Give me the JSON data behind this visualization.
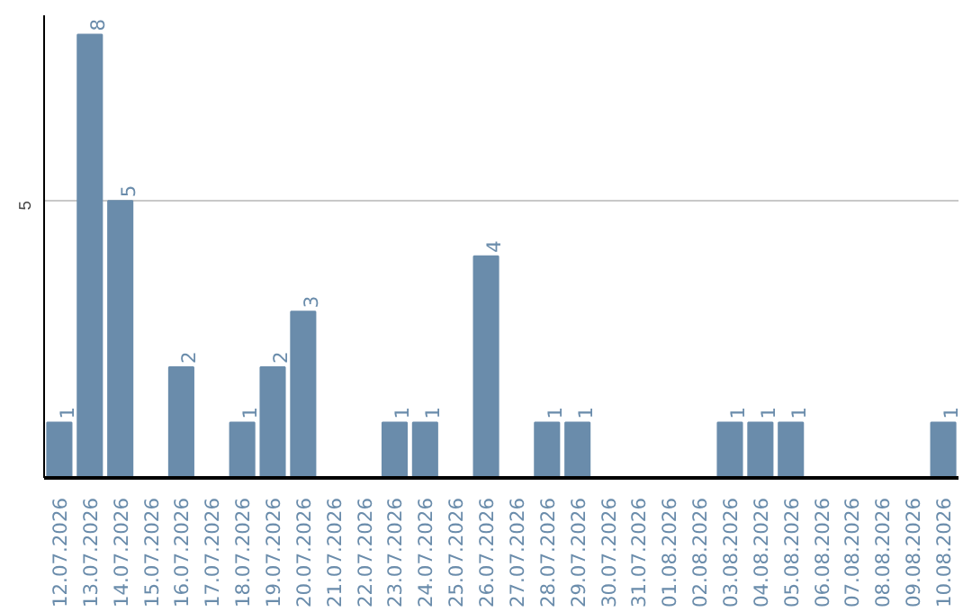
{
  "chart_data": {
    "type": "bar",
    "categories": [
      "12.07.2026",
      "13.07.2026",
      "14.07.2026",
      "15.07.2026",
      "16.07.2026",
      "17.07.2026",
      "18.07.2026",
      "19.07.2026",
      "20.07.2026",
      "21.07.2026",
      "22.07.2026",
      "23.07.2026",
      "24.07.2026",
      "25.07.2026",
      "26.07.2026",
      "27.07.2026",
      "28.07.2026",
      "29.07.2026",
      "30.07.2026",
      "31.07.2026",
      "01.08.2026",
      "02.08.2026",
      "03.08.2026",
      "04.08.2026",
      "05.08.2026",
      "06.08.2026",
      "07.08.2026",
      "08.08.2026",
      "09.08.2026",
      "10.08.2026"
    ],
    "values": [
      1,
      8,
      5,
      0,
      2,
      0,
      1,
      2,
      3,
      0,
      0,
      1,
      1,
      0,
      4,
      0,
      1,
      1,
      0,
      0,
      0,
      0,
      1,
      1,
      1,
      0,
      0,
      0,
      0,
      1
    ],
    "value_labels": [
      "1",
      "8",
      "5",
      null,
      "2",
      null,
      "1",
      "2",
      "3",
      null,
      null,
      "1",
      "1",
      null,
      "4",
      null,
      "1",
      "1",
      null,
      null,
      null,
      null,
      "1",
      "1",
      "1",
      null,
      null,
      null,
      null,
      "1"
    ],
    "color": "#6a8cab",
    "ylim": [
      0,
      8.35
    ],
    "yticks": [
      5
    ],
    "grid": "y"
  }
}
